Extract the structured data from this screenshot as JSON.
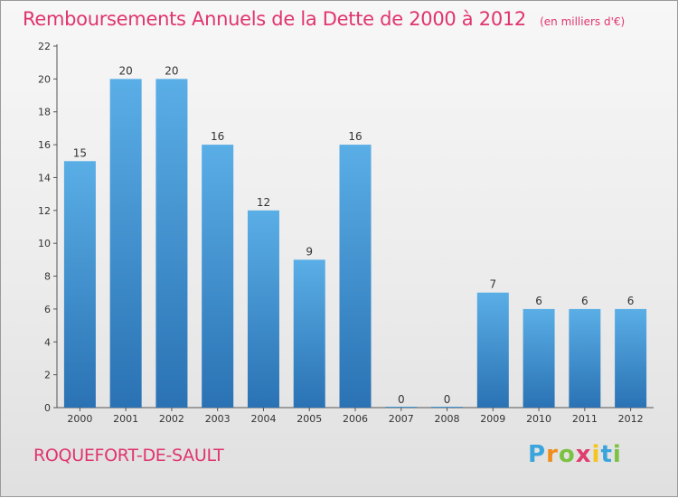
{
  "title": "Remboursements Annuels de la Dette de 2000 à 2012",
  "unit": "(en milliers d'€)",
  "commune": "ROQUEFORT-DE-SAULT",
  "logo": {
    "letters": [
      "P",
      "r",
      "o",
      "x",
      "i",
      "t",
      "i"
    ],
    "colors": [
      "#3aa5dc",
      "#f08c1a",
      "#7cc242",
      "#e03c6e",
      "#f6c41a",
      "#3aa5dc",
      "#7cc242"
    ]
  },
  "colors": {
    "bar": "#4a9fdc",
    "bar_dark": "#2d76b8",
    "accent": "#e0346e"
  },
  "chart_data": {
    "type": "bar",
    "categories": [
      "2000",
      "2001",
      "2002",
      "2003",
      "2004",
      "2005",
      "2006",
      "2007",
      "2008",
      "2009",
      "2010",
      "2011",
      "2012"
    ],
    "values": [
      15,
      20,
      20,
      16,
      12,
      9,
      16,
      0,
      0,
      7,
      6,
      6,
      6
    ],
    "data_labels": [
      "15",
      "20",
      "20",
      "16",
      "12",
      "9",
      "16",
      "0",
      "0",
      "7",
      "6",
      "6",
      "6"
    ],
    "yticks": [
      0,
      2,
      4,
      6,
      8,
      10,
      12,
      14,
      16,
      18,
      20,
      22
    ],
    "ylim": [
      0,
      22
    ],
    "grid": false,
    "xlabel": "",
    "ylabel": ""
  }
}
